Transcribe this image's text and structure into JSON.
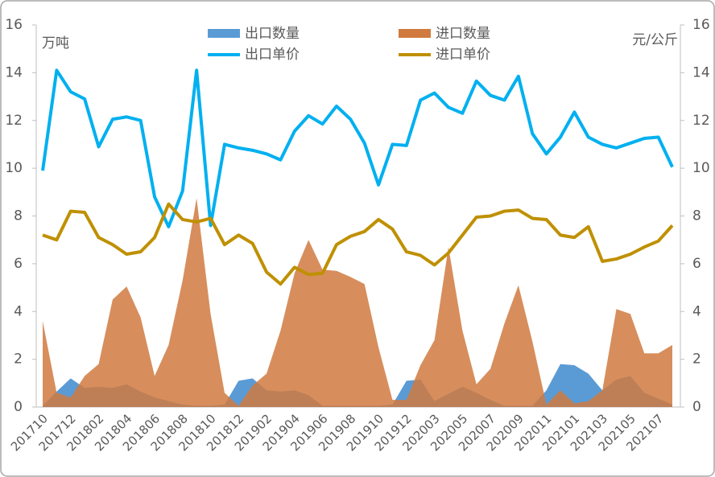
{
  "chart_data": {
    "type": "area_line",
    "y_label": "万吨",
    "y2_label": "元/公斤",
    "categories": [
      "201710",
      null,
      "201712",
      null,
      "201802",
      null,
      "201804",
      null,
      "201806",
      null,
      "201808",
      null,
      "201810",
      null,
      "201812",
      null,
      "201902",
      null,
      "201904",
      null,
      "201906",
      null,
      "201908",
      null,
      "201910",
      null,
      "201912",
      null,
      "202003",
      null,
      "202005",
      null,
      "202007",
      null,
      "202009",
      null,
      "202011",
      null,
      "202101",
      null,
      "202103",
      null,
      "202105",
      null,
      "202107",
      null
    ],
    "ylim": [
      0,
      16
    ],
    "yticks": [
      0,
      2,
      4,
      6,
      8,
      10,
      12,
      14,
      16
    ],
    "y2lim": [
      0,
      16
    ],
    "y2ticks": [
      0,
      2,
      4,
      6,
      8,
      10,
      12,
      14,
      16
    ],
    "legend": "top",
    "series": [
      {
        "name": "出口数量",
        "kind": "area",
        "color": "#5b9bd5",
        "values": [
          0.05,
          0.65,
          1.2,
          0.8,
          0.85,
          0.8,
          0.95,
          0.65,
          0.4,
          0.25,
          0.1,
          0.05,
          0.05,
          0.1,
          1.1,
          1.2,
          0.7,
          0.65,
          0.7,
          0.5,
          0.05,
          0.05,
          0.05,
          0.05,
          0.05,
          0.1,
          1.1,
          1.15,
          0.25,
          0.55,
          0.85,
          0.6,
          0.3,
          0.05,
          0.05,
          0.05,
          0.7,
          1.8,
          1.75,
          1.4,
          0.7,
          1.15,
          1.3,
          0.6,
          0.35,
          0.1
        ]
      },
      {
        "name": "进口数量",
        "kind": "area",
        "color": "#d07a3f",
        "values": [
          3.6,
          0.6,
          0.4,
          1.3,
          1.8,
          4.5,
          5.05,
          3.75,
          1.3,
          2.6,
          5.3,
          8.75,
          3.9,
          0.6,
          0.05,
          0.9,
          1.4,
          3.2,
          5.6,
          7.0,
          5.75,
          5.7,
          5.45,
          5.15,
          2.5,
          0.3,
          0.3,
          1.75,
          2.8,
          6.7,
          3.2,
          0.95,
          1.6,
          3.5,
          5.1,
          2.75,
          0.1,
          0.7,
          0.15,
          0.25,
          0.7,
          4.1,
          3.9,
          2.25,
          2.25,
          2.6
        ]
      },
      {
        "name": "出口单价",
        "kind": "line",
        "axis": "y2",
        "color": "#00b0f0",
        "values": [
          9.9,
          14.1,
          13.2,
          12.9,
          10.9,
          12.05,
          12.15,
          12.0,
          8.8,
          7.55,
          9.05,
          14.1,
          7.6,
          11.0,
          10.85,
          10.75,
          10.6,
          10.35,
          11.55,
          12.2,
          11.85,
          12.6,
          12.05,
          11.05,
          9.3,
          11.0,
          10.95,
          12.85,
          13.15,
          12.55,
          12.3,
          13.65,
          13.05,
          12.85,
          13.85,
          11.45,
          10.6,
          11.3,
          12.35,
          11.3,
          11.0,
          10.85,
          11.05,
          11.25,
          11.3,
          10.05
        ]
      },
      {
        "name": "进口单价",
        "kind": "line",
        "axis": "y2",
        "color": "#bf9000",
        "values": [
          7.2,
          7.0,
          8.2,
          8.15,
          7.1,
          6.8,
          6.4,
          6.5,
          7.1,
          8.5,
          7.85,
          7.75,
          7.9,
          6.8,
          7.2,
          6.85,
          5.65,
          5.15,
          5.85,
          5.55,
          5.6,
          6.8,
          7.15,
          7.35,
          7.85,
          7.45,
          6.5,
          6.35,
          5.95,
          6.45,
          7.2,
          7.95,
          8.0,
          8.2,
          8.25,
          7.9,
          7.85,
          7.2,
          7.1,
          7.55,
          6.1,
          6.2,
          6.4,
          6.7,
          6.95,
          7.6
        ]
      }
    ]
  }
}
